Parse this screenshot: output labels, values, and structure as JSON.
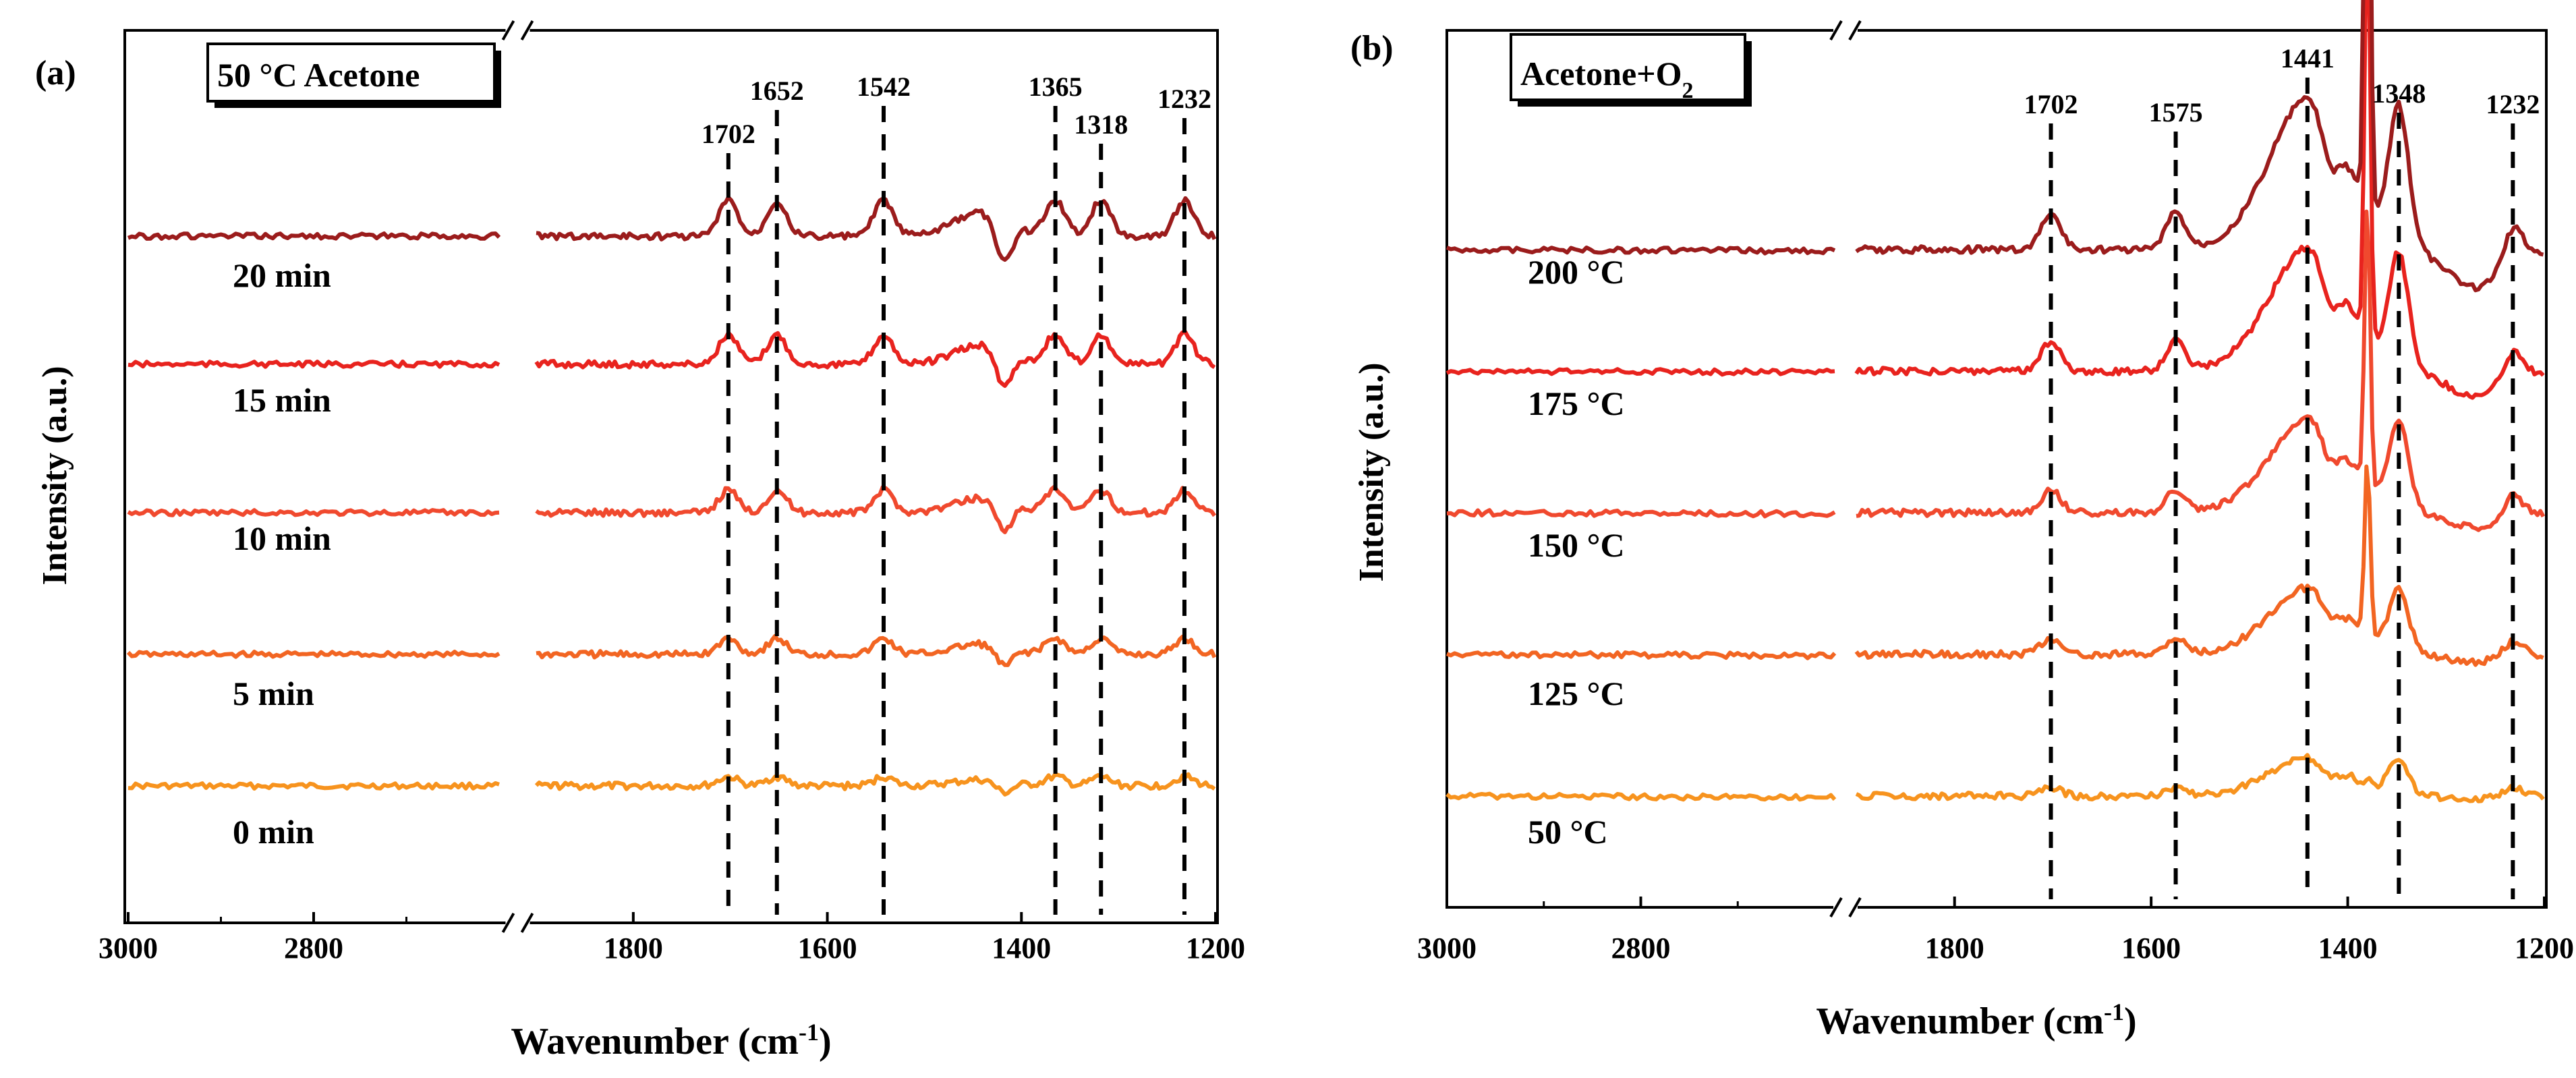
{
  "chart_data": [
    {
      "type": "line",
      "panel_label": "(a)",
      "title": "50 °C Acetone",
      "xlabel": "Wavenumber (cm",
      "xlabel_sup": "-1",
      "xlabel_tail": ")",
      "ylabel": "Intensity (a.u.)",
      "x_axis_break": [
        2600,
        1900
      ],
      "xlim": [
        3000,
        1200
      ],
      "x_ticks": [
        "3000",
        "2800",
        "1800",
        "1600",
        "1400",
        "1200"
      ],
      "x_tick_values": [
        3000,
        2800,
        1800,
        1600,
        1400,
        1200
      ],
      "peak_lines": [
        "1702",
        "1652",
        "1542",
        "1365",
        "1318",
        "1232"
      ],
      "peak_values": [
        1702,
        1652,
        1542,
        1365,
        1318,
        1232
      ],
      "series": [
        {
          "name": "0 min",
          "color": "#f7931e"
        },
        {
          "name": "5 min",
          "color": "#f26522"
        },
        {
          "name": "10 min",
          "color": "#f0492e"
        },
        {
          "name": "15 min",
          "color": "#e8231e"
        },
        {
          "name": "20 min",
          "color": "#9b1c1c"
        }
      ]
    },
    {
      "type": "line",
      "panel_label": "(b)",
      "title": "Acetone+O",
      "title_sub": "2",
      "xlabel": "Wavenumber (cm",
      "xlabel_sup": "-1",
      "xlabel_tail": ")",
      "ylabel": "Intensity (a.u.)",
      "x_axis_break": [
        2600,
        1900
      ],
      "xlim": [
        3000,
        1200
      ],
      "x_ticks": [
        "3000",
        "2800",
        "1800",
        "1600",
        "1400",
        "1200"
      ],
      "x_tick_values": [
        3000,
        2800,
        1800,
        1600,
        1400,
        1200
      ],
      "peak_lines": [
        "1702",
        "1575",
        "1441",
        "1348",
        "1232"
      ],
      "peak_values": [
        1702,
        1575,
        1441,
        1348,
        1232
      ],
      "series": [
        {
          "name": "50 °C",
          "color": "#f7931e"
        },
        {
          "name": "125 °C",
          "color": "#f26522"
        },
        {
          "name": "150 °C",
          "color": "#f0492e"
        },
        {
          "name": "175 °C",
          "color": "#e8231e"
        },
        {
          "name": "200 °C",
          "color": "#9b1c1c"
        }
      ]
    }
  ]
}
